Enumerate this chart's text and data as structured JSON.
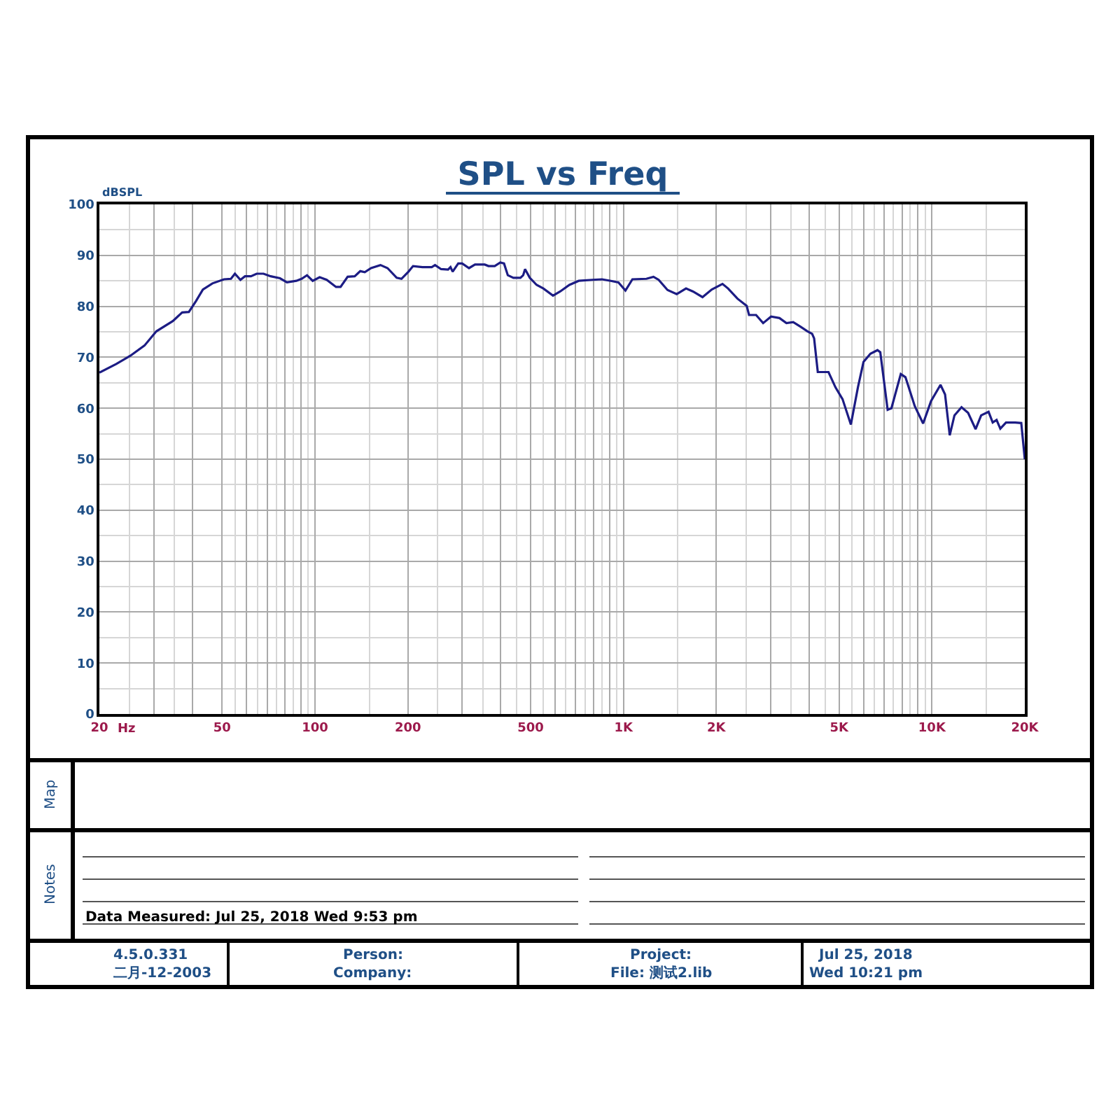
{
  "chart_data": {
    "type": "line",
    "title": "SPL vs Freq",
    "xlabel": "Hz",
    "ylabel": "dBSPL",
    "log": "x",
    "x": [
      20,
      22.7,
      25.2,
      28,
      30.6,
      34.6,
      37.1,
      39,
      41.1,
      43.3,
      46.5,
      50.7,
      53.4,
      55,
      57.3,
      59.3,
      62,
      64.7,
      68.1,
      71.8,
      77,
      81.1,
      87,
      90.5,
      94.2,
      98.3,
      103.5,
      109.1,
      117,
      121,
      127.6,
      134.5,
      140.2,
      145,
      152,
      163,
      171.8,
      184,
      190.7,
      200.9,
      207.9,
      222.9,
      239,
      245,
      256.3,
      270,
      275,
      279.4,
      291.3,
      300,
      315.7,
      330.2,
      355,
      365,
      382.4,
      398.8,
      410,
      421.7,
      439.7,
      463.4,
      473,
      479.7,
      496.8,
      523,
      550,
      591,
      623,
      668,
      716,
      794,
      852,
      910,
      963,
      1015,
      1069,
      1187,
      1251,
      1300,
      1389,
      1488,
      1595,
      1681,
      1804,
      1933,
      2094,
      2183,
      2342,
      2509,
      2553,
      2691,
      2836,
      3009,
      3204,
      3375,
      3550,
      3747,
      3950,
      4088,
      4150,
      4265,
      4620,
      4867,
      5130,
      5460,
      5755,
      6000,
      6320,
      6660,
      6800,
      7185,
      7390,
      7925,
      8206,
      8797,
      9363,
      9934,
      10660,
      11030,
      11420,
      11830,
      12470,
      13100,
      13850,
      14440,
      15260,
      15740,
      16200,
      16660,
      17380,
      18620,
      19480,
      20000
    ],
    "series": [
      {
        "color": "#1c1c84",
        "values": [
          67.0,
          68.7,
          70.3,
          72.3,
          75.1,
          77.1,
          78.8,
          78.9,
          81.0,
          83.3,
          84.5,
          85.3,
          85.4,
          86.4,
          85.2,
          85.9,
          85.9,
          86.4,
          86.4,
          85.9,
          85.5,
          84.7,
          85.0,
          85.4,
          86.1,
          85.0,
          85.7,
          85.2,
          83.8,
          83.8,
          85.8,
          85.9,
          86.9,
          86.7,
          87.5,
          88.1,
          87.5,
          85.6,
          85.4,
          86.8,
          87.9,
          87.7,
          87.7,
          88.1,
          87.3,
          87.2,
          87.7,
          86.8,
          88.4,
          88.4,
          87.5,
          88.2,
          88.2,
          87.9,
          87.9,
          88.6,
          88.4,
          86.1,
          85.6,
          85.6,
          86.1,
          87.3,
          85.6,
          84.2,
          83.5,
          82.1,
          82.9,
          84.2,
          85.0,
          85.2,
          85.3,
          85.0,
          84.7,
          83.1,
          85.3,
          85.4,
          85.8,
          85.2,
          83.2,
          82.4,
          83.5,
          82.9,
          81.8,
          83.3,
          84.4,
          83.5,
          81.5,
          80.1,
          78.3,
          78.3,
          76.7,
          78.0,
          77.7,
          76.7,
          76.9,
          76.0,
          75.1,
          74.6,
          73.7,
          67.1,
          67.1,
          64.1,
          61.8,
          56.8,
          64.1,
          69.1,
          70.7,
          71.4,
          71.0,
          59.7,
          60.0,
          66.7,
          66.1,
          60.4,
          57.0,
          61.4,
          64.6,
          62.7,
          54.7,
          58.6,
          60.2,
          59.1,
          55.9,
          58.6,
          59.3,
          57.2,
          57.7,
          56.0,
          57.2,
          57.2,
          57.1,
          50.0
        ]
      }
    ],
    "xlim": [
      20,
      20000
    ],
    "ylim": [
      0,
      100
    ],
    "xticks": [
      20,
      {
        "value": 25,
        "label": null
      },
      {
        "value": 30,
        "label": null
      },
      {
        "value": 35,
        "label": null
      },
      {
        "value": 40,
        "label": null
      },
      50,
      {
        "value": 55,
        "label": null
      },
      {
        "value": 60,
        "label": null
      },
      {
        "value": 65,
        "label": null
      },
      {
        "value": 70,
        "label": null
      },
      {
        "value": 75,
        "label": null
      },
      {
        "value": 80,
        "label": null
      },
      {
        "value": 85,
        "label": null
      },
      {
        "value": 90,
        "label": null
      },
      {
        "value": 95,
        "label": null
      },
      100,
      {
        "value": 150,
        "label": null
      },
      200,
      {
        "value": 250,
        "label": null
      },
      {
        "value": 300,
        "label": null
      },
      {
        "value": 350,
        "label": null
      },
      {
        "value": 400,
        "label": null
      },
      {
        "value": 450,
        "label": null
      },
      500,
      {
        "value": 550,
        "label": null
      },
      {
        "value": 600,
        "label": null
      },
      {
        "value": 650,
        "label": null
      },
      {
        "value": 700,
        "label": null
      },
      {
        "value": 750,
        "label": null
      },
      {
        "value": 800,
        "label": null
      },
      {
        "value": 850,
        "label": null
      },
      {
        "value": 900,
        "label": null
      },
      {
        "value": 950,
        "label": null
      },
      {
        "value": 1000,
        "label": "1K"
      },
      {
        "value": 1500,
        "label": null
      },
      {
        "value": 2000,
        "label": "2K"
      },
      {
        "value": 2500,
        "label": null
      },
      {
        "value": 3000,
        "label": null
      },
      {
        "value": 3500,
        "label": null
      },
      {
        "value": 4000,
        "label": null
      },
      {
        "value": 4500,
        "label": null
      },
      {
        "value": 5000,
        "label": "5K"
      },
      {
        "value": 5500,
        "label": null
      },
      {
        "value": 6000,
        "label": null
      },
      {
        "value": 6500,
        "label": null
      },
      {
        "value": 7000,
        "label": null
      },
      {
        "value": 7500,
        "label": null
      },
      {
        "value": 8000,
        "label": null
      },
      {
        "value": 8500,
        "label": null
      },
      {
        "value": 9000,
        "label": null
      },
      {
        "value": 9500,
        "label": null
      },
      {
        "value": 10000,
        "label": "10K"
      },
      {
        "value": 15000,
        "label": null
      },
      {
        "value": 20000,
        "label": "20K"
      }
    ],
    "yticks": [
      0,
      {
        "value": 5,
        "label": null
      },
      10,
      {
        "value": 15,
        "label": null
      },
      20,
      {
        "value": 25,
        "label": null
      },
      30,
      {
        "value": 35,
        "label": null
      },
      40,
      {
        "value": 45,
        "label": null
      },
      50,
      {
        "value": 55,
        "label": null
      },
      60,
      {
        "value": 65,
        "label": null
      },
      70,
      {
        "value": 75,
        "label": null
      },
      80,
      {
        "value": 85,
        "label": null
      },
      90,
      {
        "value": 95,
        "label": null
      },
      100
    ],
    "grid": true,
    "line_style": "solid",
    "annotations": [
      "Map",
      "Notes",
      "Data Measured: Jul 25, 2018 Wed 9:53 pm",
      "4.5.0.331",
      "二月-12-2003",
      "Person:",
      "Company:",
      "Project:",
      "File: 测试2.lib",
      "Jul 25, 2018",
      "Wed 10:21 pm"
    ]
  }
}
